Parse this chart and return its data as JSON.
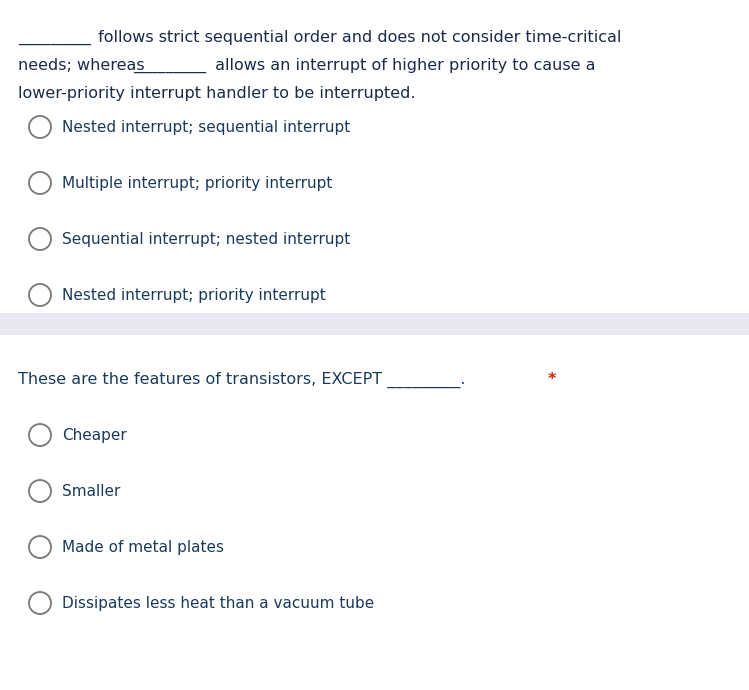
{
  "bg_color": "#ffffff",
  "separator_color": "#e8e8f0",
  "q1_line1a": "_________",
  "q1_line1b": " follows strict sequential order and does not consider time-critical",
  "q1_line2a": "needs; whereas",
  "q1_line2b": "_________",
  "q1_line2c": " allows an interrupt of higher priority to cause a",
  "q1_line3": "lower-priority interrupt handler to be interrupted.",
  "q1_text_color": "#1a2a4a",
  "question1_options": [
    "Nested interrupt; sequential interrupt",
    "Multiple interrupt; priority interrupt",
    "Sequential interrupt; nested interrupt",
    "Nested interrupt; priority interrupt"
  ],
  "question1_option_color": "#1a3a5c",
  "q2_text": "These are the features of transistors, EXCEPT _________.",
  "q2_text_color": "#1a3a5c",
  "q2_star": "*",
  "q2_star_color": "#cc2200",
  "question2_options": [
    "Cheaper",
    "Smaller",
    "Made of metal plates",
    "Dissipates less heat than a vacuum tube"
  ],
  "question2_option_color": "#1a3a5c",
  "circle_edge_color": "#777777",
  "font_size_body": 11.5,
  "font_size_option": 11.0
}
